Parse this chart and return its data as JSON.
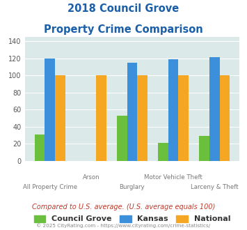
{
  "title_line1": "2018 Council Grove",
  "title_line2": "Property Crime Comparison",
  "title_color": "#1a5fa8",
  "categories": [
    "All Property Crime",
    "Arson",
    "Burglary",
    "Motor Vehicle Theft",
    "Larceny & Theft"
  ],
  "council_grove": [
    31,
    0,
    53,
    21,
    29
  ],
  "kansas": [
    120,
    0,
    115,
    119,
    121
  ],
  "national": [
    100,
    100,
    100,
    100,
    100
  ],
  "bar_colors": {
    "council_grove": "#6abf3c",
    "kansas": "#3b8fdb",
    "national": "#f5a623"
  },
  "ylim": [
    0,
    145
  ],
  "yticks": [
    0,
    20,
    40,
    60,
    80,
    100,
    120,
    140
  ],
  "legend_labels": [
    "Council Grove",
    "Kansas",
    "National"
  ],
  "note": "Compared to U.S. average. (U.S. average equals 100)",
  "note_color": "#c0392b",
  "copyright": "© 2025 CityRating.com - https://www.cityrating.com/crime-statistics/",
  "copyright_color": "#888888",
  "background_color": "#dce9e9",
  "bar_width": 0.25
}
